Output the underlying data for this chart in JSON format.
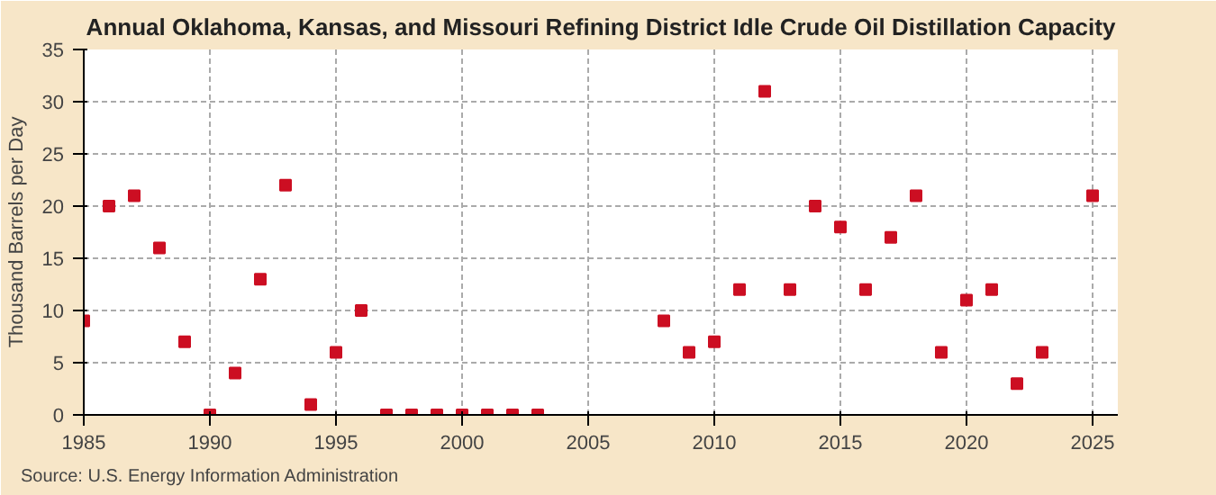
{
  "chart_data": {
    "type": "scatter",
    "title": "Annual Oklahoma, Kansas, and Missouri Refining District Idle Crude Oil Distillation Capacity",
    "ylabel": "Thousand Barrels per Day",
    "x": [
      1985,
      1986,
      1987,
      1988,
      1989,
      1990,
      1991,
      1992,
      1993,
      1994,
      1995,
      1996,
      1997,
      1998,
      1999,
      2000,
      2001,
      2002,
      2003,
      2008,
      2009,
      2010,
      2011,
      2012,
      2013,
      2014,
      2015,
      2016,
      2017,
      2018,
      2019,
      2020,
      2021,
      2022,
      2023,
      2025
    ],
    "series": [
      {
        "color": "#cc0e22",
        "values": [
          9,
          20,
          21,
          16,
          7,
          0,
          4,
          13,
          22,
          1,
          6,
          10,
          0,
          0,
          0,
          0,
          0,
          0,
          0,
          9,
          6,
          7,
          12,
          31,
          12,
          20,
          18,
          12,
          17,
          21,
          6,
          11,
          12,
          3,
          6,
          21
        ]
      }
    ],
    "xlim": [
      1985,
      2026
    ],
    "xticks": [
      1985,
      1990,
      1995,
      2000,
      2005,
      2010,
      2015,
      2020,
      2025
    ],
    "ylim": [
      0,
      35
    ],
    "yticks": [
      0,
      5,
      10,
      15,
      20,
      25,
      30,
      35
    ],
    "grid": true,
    "marker": "square",
    "annotations": [
      "Source: U.S. Energy Information Administration"
    ]
  }
}
